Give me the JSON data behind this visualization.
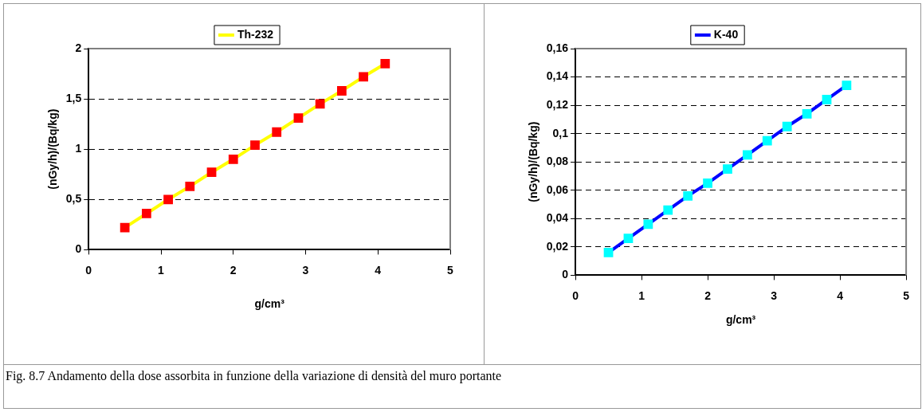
{
  "chart_data": [
    {
      "type": "line",
      "xlabel": "g/cm³",
      "ylabel": "(nGy/h)/(Bq/kg)",
      "x": [
        0.5,
        0.8,
        1.1,
        1.4,
        1.7,
        2.0,
        2.3,
        2.6,
        2.9,
        3.2,
        3.5,
        3.8,
        4.1
      ],
      "series": [
        {
          "name": "Th-232",
          "color": "#ffff00",
          "colors": [
            "#ff0000",
            "#ff0000",
            "#ff0000",
            "#ff0000",
            "#ff0000",
            "#ff0000",
            "#ff0000",
            "#ff0000",
            "#ff0000",
            "#ff0000",
            "#ff0000",
            "#ff0000",
            "#ff0000"
          ],
          "values": [
            0.22,
            0.36,
            0.5,
            0.63,
            0.77,
            0.9,
            1.04,
            1.17,
            1.31,
            1.45,
            1.58,
            1.72,
            1.85
          ]
        }
      ],
      "xlim": [
        0,
        5
      ],
      "xticks": [
        0,
        1,
        2,
        3,
        4,
        5
      ],
      "ylim": [
        0,
        2
      ],
      "yticks": [
        0,
        {
          "value": 0.5,
          "label": "0,5"
        },
        1,
        {
          "value": 1.5,
          "label": "1,5"
        },
        2
      ],
      "grid": "y",
      "legend": "top",
      "marker": "square",
      "annotations": [
        "Fig. 8.7  Andamento della dose assorbita in funzione della variazione di densità del muro portante"
      ]
    },
    {
      "type": "line",
      "xlabel": "g/cm³",
      "ylabel": "(nGy/h)/(Bq/kg)",
      "x": [
        0.5,
        0.8,
        1.1,
        1.4,
        1.7,
        2.0,
        2.3,
        2.6,
        2.9,
        3.2,
        3.5,
        3.8,
        4.1
      ],
      "series": [
        {
          "name": "K-40",
          "color": "#0000ff",
          "colors": [
            "#00ffff",
            "#00ffff",
            "#00ffff",
            "#00ffff",
            "#00ffff",
            "#00ffff",
            "#00ffff",
            "#00ffff",
            "#00ffff",
            "#00ffff",
            "#00ffff",
            "#00ffff",
            "#00ffff"
          ],
          "values": [
            0.016,
            0.026,
            0.036,
            0.046,
            0.056,
            0.065,
            0.075,
            0.085,
            0.095,
            0.105,
            0.114,
            0.124,
            0.134
          ]
        }
      ],
      "xlim": [
        0,
        5
      ],
      "xticks": [
        0,
        1,
        2,
        3,
        4,
        5
      ],
      "ylim": [
        0,
        0.16
      ],
      "yticks": [
        0,
        {
          "value": 0.02,
          "label": "0,02"
        },
        {
          "value": 0.04,
          "label": "0,04"
        },
        {
          "value": 0.06,
          "label": "0,06"
        },
        {
          "value": 0.08,
          "label": "0,08"
        },
        {
          "value": 0.1,
          "label": "0,1"
        },
        {
          "value": 0.12,
          "label": "0,12"
        },
        {
          "value": 0.14,
          "label": "0,14"
        },
        {
          "value": 0.16,
          "label": "0,16"
        }
      ],
      "grid": "y",
      "legend": "top",
      "marker": "square"
    }
  ]
}
